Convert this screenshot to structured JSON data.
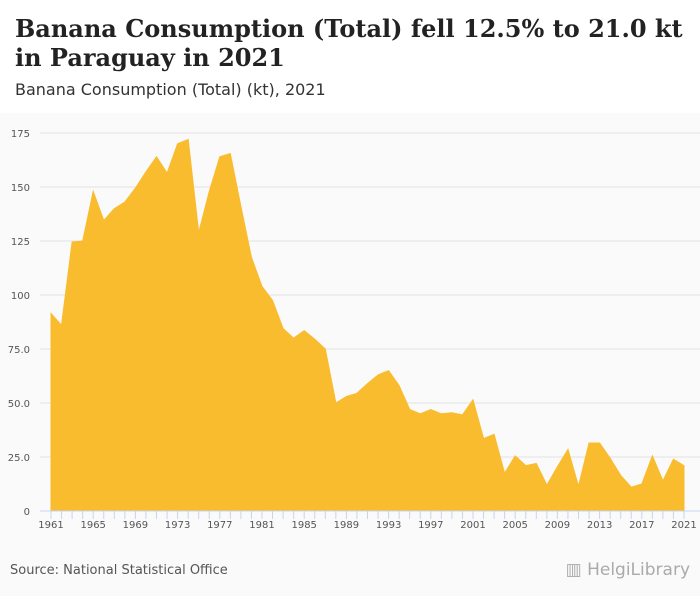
{
  "header": {
    "title": "Banana Consumption (Total) fell 12.5% to 21.0 kt in Paraguay in 2021",
    "subtitle": "Banana Consumption (Total) (kt), 2021"
  },
  "footer": {
    "source": "Source: National Statistical Office",
    "logo": "HelgiLibrary"
  },
  "chart_data": {
    "type": "area",
    "title": "Banana Consumption (Total) (kt), 2021",
    "xlabel": "",
    "ylabel": "kt",
    "ylim": [
      0,
      175
    ],
    "yticks": [
      "0",
      "25.0",
      "50.0",
      "75.0",
      "100",
      "125",
      "150",
      "175"
    ],
    "xticks": [
      "1961",
      "1965",
      "1969",
      "1973",
      "1977",
      "1981",
      "1985",
      "1989",
      "1993",
      "1997",
      "2001",
      "2005",
      "2009",
      "2013",
      "2017",
      "2021"
    ],
    "color": "#f9bc2e",
    "x": [
      1961,
      1962,
      1963,
      1964,
      1965,
      1966,
      1967,
      1968,
      1969,
      1970,
      1971,
      1972,
      1973,
      1974,
      1975,
      1976,
      1977,
      1978,
      1979,
      1980,
      1981,
      1982,
      1983,
      1984,
      1985,
      1986,
      1987,
      1988,
      1989,
      1990,
      1991,
      1992,
      1993,
      1994,
      1995,
      1996,
      1997,
      1998,
      1999,
      2000,
      2001,
      2002,
      2003,
      2004,
      2005,
      2006,
      2007,
      2008,
      2009,
      2010,
      2011,
      2012,
      2013,
      2014,
      2015,
      2016,
      2017,
      2018,
      2019,
      2020,
      2021
    ],
    "values": [
      91.5,
      86,
      124.5,
      125,
      148,
      134.5,
      140,
      143,
      149.5,
      157,
      164,
      156.5,
      170,
      172,
      129,
      148,
      164,
      165.5,
      141,
      117.5,
      104,
      97.5,
      84.5,
      80,
      83.5,
      79.5,
      75,
      50,
      53,
      54.5,
      59,
      63,
      65,
      58,
      47,
      45,
      47,
      45,
      45.5,
      44.5,
      51.5,
      33.5,
      35.5,
      17.5,
      25.5,
      21,
      22,
      12,
      20.5,
      28.5,
      11.5,
      31.5,
      31.5,
      24.5,
      16.5,
      11,
      12.5,
      25.5,
      14,
      24,
      21
    ]
  }
}
